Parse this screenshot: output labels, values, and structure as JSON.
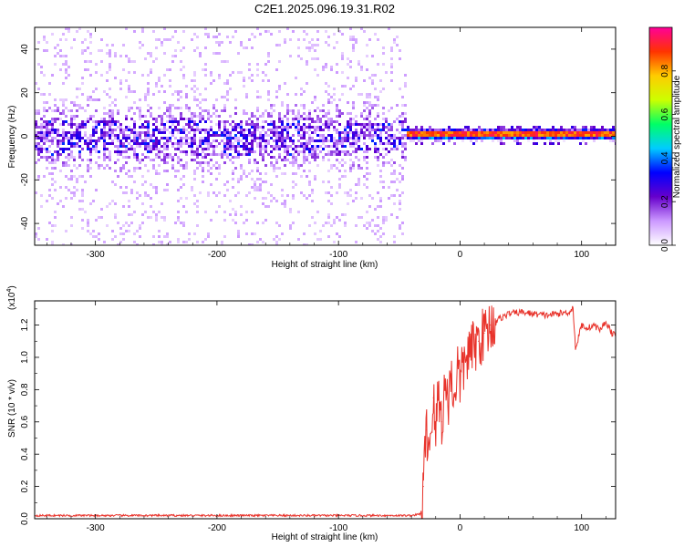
{
  "figure": {
    "title": "C2E1.2025.096.19.31.R02"
  },
  "chart_data": [
    {
      "type": "heatmap",
      "title": "C2E1.2025.096.19.31.R02",
      "xlabel": "Height of straight line (km)",
      "ylabel": "Frequency (Hz)",
      "xlim": [
        -350,
        128
      ],
      "ylim": [
        -50,
        50
      ],
      "xticks": [
        -300,
        -200,
        -100,
        0,
        100
      ],
      "yticks": [
        -40,
        -20,
        0,
        20,
        40
      ],
      "colorbar": {
        "label": "Normalized spectral amplitude",
        "range": [
          0,
          1
        ],
        "ticks": [
          "0.0",
          "0.2",
          "0.4",
          "0.6",
          "0.8"
        ],
        "colors": [
          "#ffffff",
          "#cc99ff",
          "#6600cc",
          "#0000ff",
          "#00ccff",
          "#00ff66",
          "#ccff00",
          "#ffcc00",
          "#ff3300",
          "#ff0099"
        ]
      },
      "description_regions": [
        {
          "x_range": [
            -350,
            -45
          ],
          "freq_center": 0,
          "freq_spread_core": 8,
          "amplitude_core": 0.2,
          "background_amplitude": 0.05
        },
        {
          "x_range": [
            -45,
            128
          ],
          "freq_center": 1.5,
          "freq_width": 3,
          "amplitude": 0.75
        }
      ]
    },
    {
      "type": "line",
      "xlabel": "Height of straight line (km)",
      "ylabel": "SNR (10 * v/v)",
      "y_multiplier": "(x10",
      "y_multiplier_exp": "4",
      "y_multiplier_close": ")",
      "xlim": [
        -350,
        128
      ],
      "ylim": [
        0,
        1.35
      ],
      "xticks": [
        -300,
        -200,
        -100,
        0,
        100
      ],
      "yticks": [
        "0.0",
        "0.2",
        "0.4",
        "0.6",
        "0.8",
        "1.0",
        "1.2"
      ],
      "color": "#e8322a",
      "series": [
        {
          "x": [
            -350,
            -300,
            -200,
            -100,
            -40,
            -32,
            -30,
            -28,
            -25,
            -22,
            -20,
            -18,
            -15,
            -12,
            -10,
            -8,
            -5,
            -2,
            0,
            5,
            10,
            15,
            20,
            25,
            30,
            35,
            40,
            50,
            60,
            70,
            80,
            90,
            93,
            95,
            100,
            105,
            110,
            115,
            120,
            125,
            128
          ],
          "y": [
            0.02,
            0.02,
            0.02,
            0.02,
            0.02,
            0.03,
            0.2,
            0.55,
            0.45,
            0.75,
            0.5,
            0.8,
            0.6,
            0.85,
            0.7,
            0.9,
            0.75,
            0.95,
            0.85,
            1.0,
            1.05,
            1.1,
            1.15,
            1.2,
            1.23,
            1.25,
            1.27,
            1.28,
            1.27,
            1.26,
            1.27,
            1.28,
            1.31,
            1.05,
            1.2,
            1.18,
            1.2,
            1.17,
            1.22,
            1.15,
            1.13
          ]
        }
      ]
    }
  ]
}
